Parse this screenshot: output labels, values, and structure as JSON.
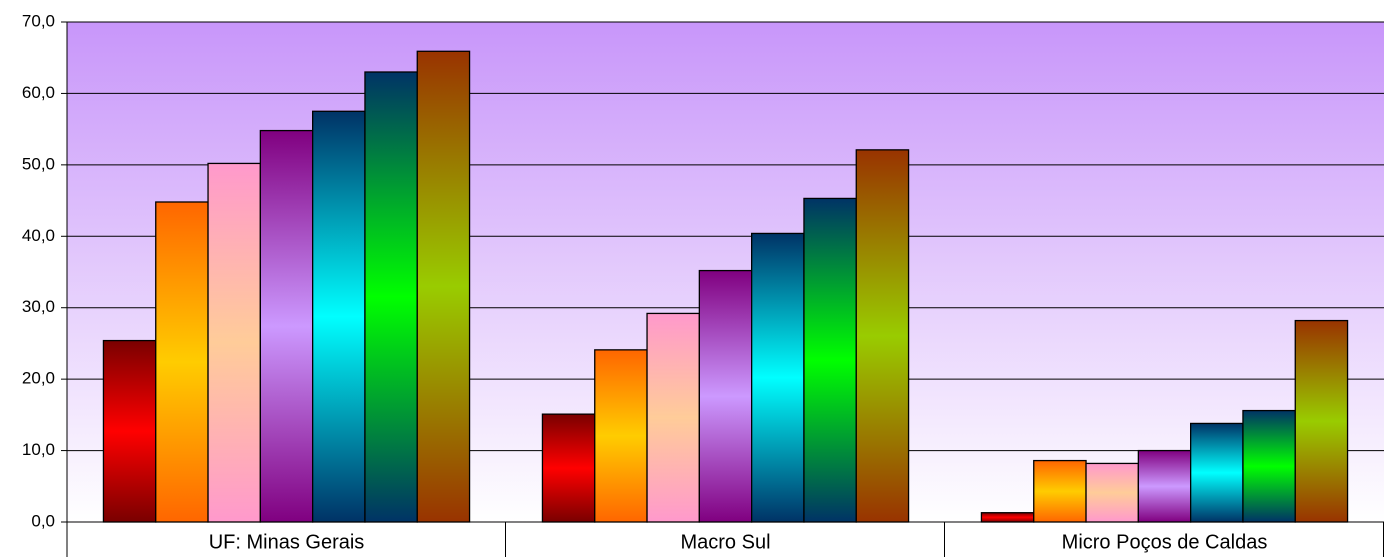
{
  "chart_data": {
    "type": "bar",
    "categories": [
      "UF: Minas Gerais",
      "Macro Sul",
      "Micro Poços de Caldas"
    ],
    "series": [
      {
        "colors": [
          "#7a0000",
          "#ff0000"
        ],
        "values": [
          25.4,
          15.1,
          1.3
        ]
      },
      {
        "colors": [
          "#ff6600",
          "#ffcc00"
        ],
        "values": [
          44.8,
          24.1,
          8.6
        ]
      },
      {
        "colors": [
          "#ff99cc",
          "#ffcc99"
        ],
        "values": [
          50.2,
          29.2,
          8.2
        ]
      },
      {
        "colors": [
          "#800080",
          "#cc99ff"
        ],
        "values": [
          54.8,
          35.2,
          10.0
        ]
      },
      {
        "colors": [
          "#003366",
          "#00ffff"
        ],
        "values": [
          57.5,
          40.4,
          13.8
        ]
      },
      {
        "colors": [
          "#003366",
          "#00ff00"
        ],
        "values": [
          63.0,
          45.3,
          15.6
        ]
      },
      {
        "colors": [
          "#993300",
          "#99cc00"
        ],
        "values": [
          65.9,
          52.1,
          28.2
        ]
      }
    ],
    "ylim": [
      0,
      70
    ],
    "yticks": [
      {
        "value": 0,
        "label": "0,0"
      },
      {
        "value": 10,
        "label": "10,0"
      },
      {
        "value": 20,
        "label": "20,0"
      },
      {
        "value": 30,
        "label": "30,0"
      },
      {
        "value": 40,
        "label": "40,0"
      },
      {
        "value": 50,
        "label": "50,0"
      },
      {
        "value": 60,
        "label": "60,0"
      },
      {
        "value": 70,
        "label": "70,0"
      }
    ],
    "grid": true,
    "background": [
      "#c896fa",
      "#ffffff"
    ]
  }
}
